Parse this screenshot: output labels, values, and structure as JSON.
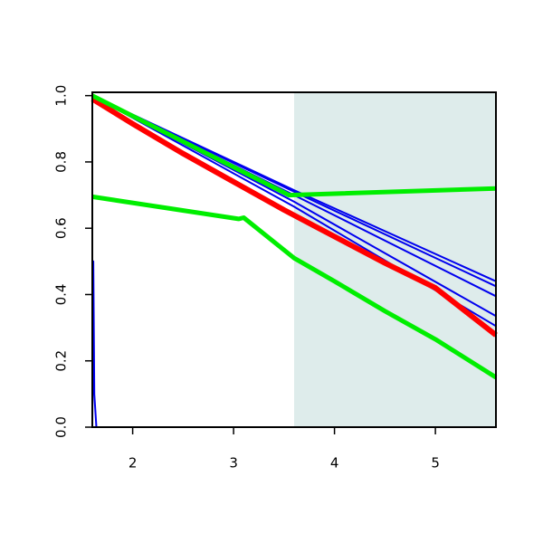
{
  "chart_data": {
    "type": "line",
    "xlim": [
      1.6,
      5.6
    ],
    "ylim": [
      0,
      1.01
    ],
    "xticks": [
      2,
      3,
      4,
      5
    ],
    "yticks": [
      {
        "value": 0,
        "label": "0.0"
      },
      {
        "value": 0.2,
        "label": "0.2"
      },
      {
        "value": 0.4,
        "label": "0.4"
      },
      {
        "value": 0.6,
        "label": "0.6"
      },
      {
        "value": 0.8,
        "label": "0.8"
      },
      {
        "value": 1,
        "label": "1.0"
      }
    ],
    "shaded_region": {
      "x": [
        3.6,
        5.6
      ],
      "color": "#deeceb"
    },
    "series": [
      {
        "color": "#0000ee",
        "width": 2,
        "x": [
          1.6,
          3.6,
          5.6
        ],
        "values": [
          1.0,
          0.715,
          0.44
        ]
      },
      {
        "color": "#0000ee",
        "width": 2,
        "x": [
          1.6,
          3.6,
          5.6
        ],
        "values": [
          1.0,
          0.71,
          0.425
        ]
      },
      {
        "color": "#0000ee",
        "width": 2,
        "x": [
          1.6,
          3.6,
          5.6
        ],
        "values": [
          1.0,
          0.7,
          0.395
        ]
      },
      {
        "color": "#0000ee",
        "width": 2,
        "x": [
          1.6,
          3.6,
          5.6
        ],
        "values": [
          1.0,
          0.68,
          0.335
        ]
      },
      {
        "color": "#0000ee",
        "width": 2,
        "x": [
          1.6,
          3.6,
          5.6
        ],
        "values": [
          1.0,
          0.665,
          0.305
        ]
      },
      {
        "color": "#ff0000",
        "width": 6,
        "x": [
          1.6,
          2,
          2.5,
          3,
          3.5,
          4,
          4.5,
          5,
          5.6
        ],
        "values": [
          0.99,
          0.915,
          0.825,
          0.74,
          0.655,
          0.575,
          0.495,
          0.42,
          0.278
        ]
      },
      {
        "color": "#0000ee",
        "width": 2,
        "x": [
          1.6,
          1.61,
          1.62,
          1.64,
          5.6
        ],
        "values": [
          0,
          0.5,
          0.1,
          0,
          0
        ]
      },
      {
        "color": "#00ee00",
        "width": 5,
        "x": [
          1.6,
          3.55,
          5.6
        ],
        "values": [
          1.0,
          0.7,
          0.72
        ]
      },
      {
        "color": "#00ee00",
        "width": 5,
        "x": [
          1.6,
          3.05,
          3.1,
          3.6,
          4,
          4.5,
          5,
          5.6
        ],
        "values": [
          0.695,
          0.628,
          0.632,
          0.51,
          0.44,
          0.35,
          0.265,
          0.15
        ]
      }
    ]
  }
}
